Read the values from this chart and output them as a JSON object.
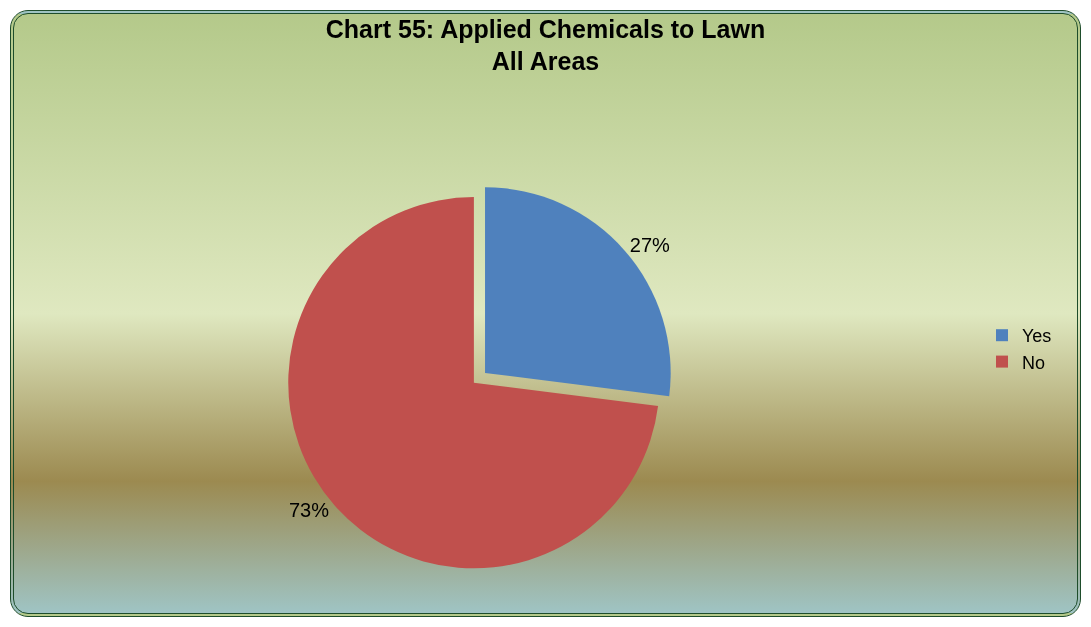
{
  "chart_data": {
    "type": "pie",
    "title": "Chart 55: Applied Chemicals to Lawn\nAll Areas",
    "categories": [
      "Yes",
      "No"
    ],
    "values": [
      27,
      73
    ],
    "colors": [
      "#4f81bd",
      "#c0504d"
    ],
    "value_labels": [
      "27%",
      "73%"
    ],
    "legend": "right"
  }
}
